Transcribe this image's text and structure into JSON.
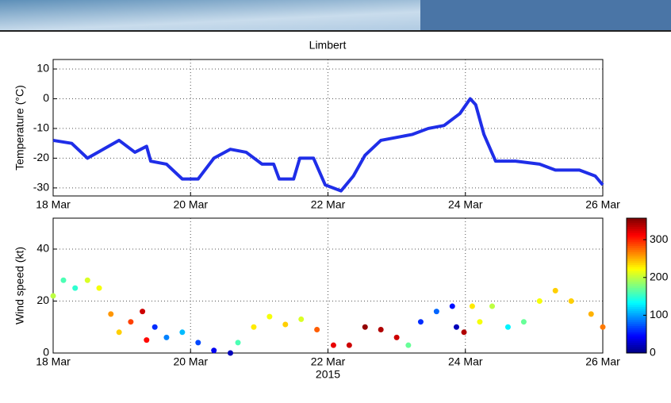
{
  "chart_data": [
    {
      "type": "line",
      "title": "Limbert",
      "ylabel": "Temperature (°C)",
      "x": [
        18.0,
        18.27,
        18.5,
        18.73,
        18.96,
        19.19,
        19.36,
        19.42,
        19.65,
        19.88,
        20.11,
        20.34,
        20.58,
        20.81,
        21.04,
        21.21,
        21.29,
        21.5,
        21.59,
        21.79,
        21.96,
        22.19,
        22.37,
        22.54,
        22.77,
        23.0,
        23.23,
        23.46,
        23.69,
        23.92,
        24.07,
        24.15,
        24.27,
        24.44,
        24.73,
        25.08,
        25.31,
        25.66,
        25.89,
        26.0
      ],
      "values": [
        -14,
        -15,
        -20,
        -17,
        -14,
        -18,
        -16,
        -21,
        -22,
        -27,
        -27,
        -20,
        -17,
        -18,
        -22,
        -22,
        -27,
        -27,
        -20,
        -20,
        -29,
        -31,
        -26,
        -19,
        -14,
        -13,
        -12,
        -10,
        -9,
        -5,
        0,
        -2,
        -12,
        -21,
        -21,
        -22,
        -24,
        -24,
        -26,
        -29
      ],
      "color": "#1f2ee8",
      "xlim": [
        18,
        26
      ],
      "xticks": [
        {
          "value": 18,
          "label": "18 Mar"
        },
        {
          "value": 20,
          "label": "20 Mar"
        },
        {
          "value": 22,
          "label": "22 Mar"
        },
        {
          "value": 24,
          "label": "24 Mar"
        },
        {
          "value": 26,
          "label": "26 Mar"
        }
      ],
      "ylim": [
        -32.7,
        13.2
      ],
      "yticks": [
        -30,
        -20,
        -10,
        0,
        10
      ],
      "grid": true
    },
    {
      "type": "scatter",
      "ylabel": "Wind speed (kt)",
      "xlabel": "2015",
      "x": [
        18.0,
        18.15,
        18.32,
        18.5,
        18.67,
        18.84,
        18.96,
        19.13,
        19.3,
        19.36,
        19.48,
        19.65,
        19.88,
        20.11,
        20.34,
        20.58,
        20.69,
        20.92,
        21.15,
        21.38,
        21.61,
        21.84,
        22.08,
        22.31,
        22.54,
        22.77,
        23.0,
        23.17,
        23.35,
        23.58,
        23.81,
        23.87,
        23.98,
        24.1,
        24.21,
        24.39,
        24.62,
        24.85,
        25.08,
        25.31,
        25.54,
        25.83,
        26.0
      ],
      "values": [
        22,
        28,
        25,
        28,
        25,
        15,
        8,
        12,
        16,
        5,
        10,
        6,
        8,
        4,
        1,
        0,
        4,
        10,
        14,
        11,
        13,
        9,
        3,
        3,
        10,
        9,
        6,
        3,
        12,
        16,
        18,
        10,
        8,
        18,
        12,
        18,
        10,
        12,
        20,
        24,
        20,
        15,
        10
      ],
      "color_values": [
        200,
        160,
        150,
        210,
        220,
        260,
        240,
        290,
        330,
        310,
        60,
        90,
        110,
        70,
        40,
        20,
        160,
        230,
        220,
        240,
        210,
        280,
        320,
        330,
        350,
        340,
        330,
        170,
        60,
        80,
        50,
        20,
        340,
        230,
        220,
        200,
        130,
        170,
        220,
        240,
        240,
        250,
        270
      ],
      "colormap": "jet",
      "clim": [
        0,
        357
      ],
      "cticks": [
        0,
        100,
        200,
        300
      ],
      "xlim": [
        18,
        26
      ],
      "xticks": [
        {
          "value": 18,
          "label": "18 Mar"
        },
        {
          "value": 20,
          "label": "20 Mar"
        },
        {
          "value": 22,
          "label": "22 Mar"
        },
        {
          "value": 24,
          "label": "24 Mar"
        },
        {
          "value": 26,
          "label": "26 Mar"
        }
      ],
      "ylim": [
        0,
        51.9
      ],
      "yticks": [
        0,
        20,
        40
      ],
      "grid": true
    }
  ]
}
